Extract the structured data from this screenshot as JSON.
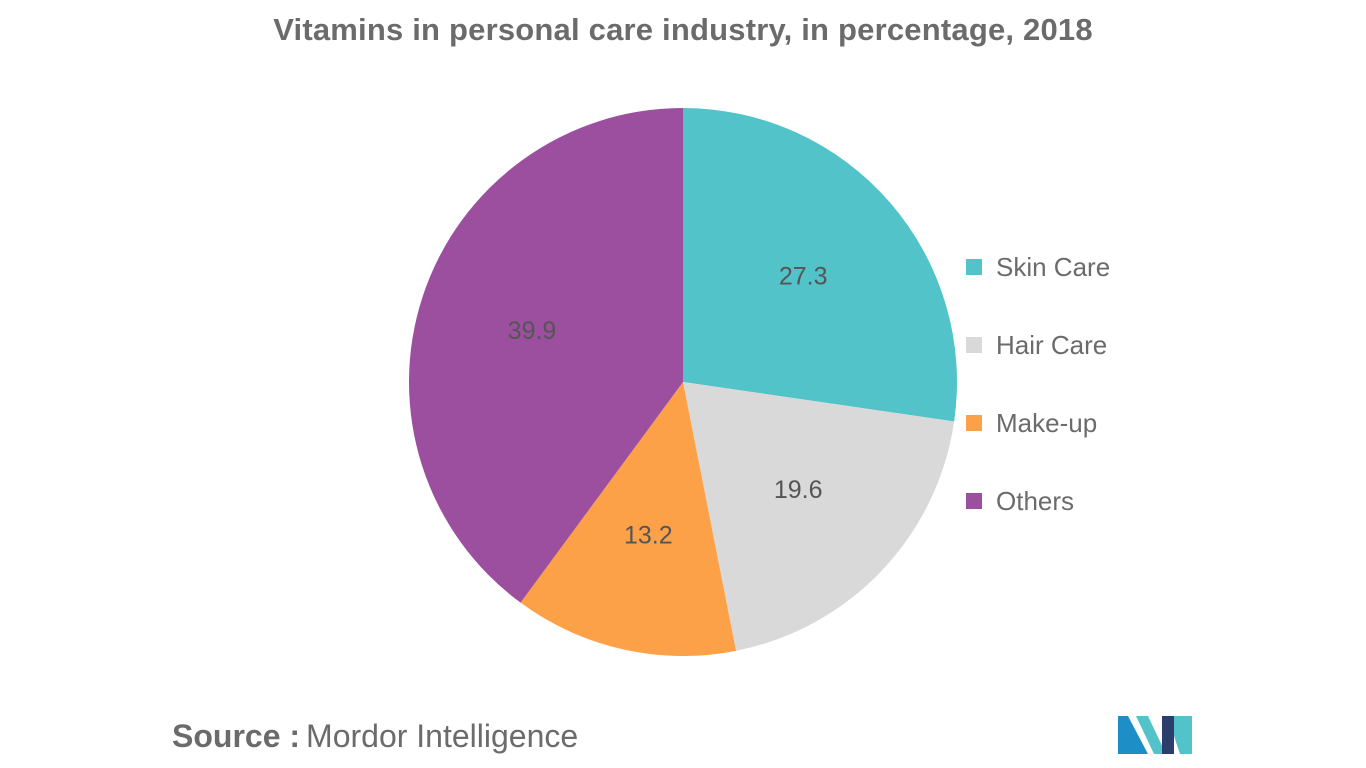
{
  "chart_data": {
    "type": "pie",
    "title": "Vitamins in personal care industry, in percentage, 2018",
    "categories": [
      "Skin Care",
      "Hair Care",
      "Make-up",
      "Others"
    ],
    "values": [
      27.3,
      19.6,
      13.2,
      39.9
    ],
    "value_labels": [
      "27.3",
      "19.6",
      "13.2",
      "39.9"
    ],
    "colors": [
      "#52c4c9",
      "#d9d9d9",
      "#fca148",
      "#9b4f9e"
    ],
    "start_angle": "12 o'clock",
    "direction": "clockwise",
    "legend_placement": "right"
  },
  "source": {
    "label": "Source :",
    "value": "Mordor Intelligence"
  },
  "logo": {
    "icon": "mordor-intelligence-logo",
    "colors": [
      "#1e8fc6",
      "#52c4c9",
      "#2c3e6b"
    ]
  }
}
